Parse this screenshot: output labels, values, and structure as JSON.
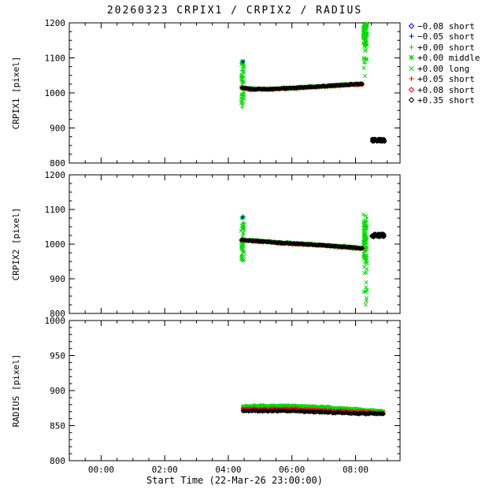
{
  "chart_data": {
    "type": "scatter",
    "title": "20260323 CRPIX1 / CRPIX2 / RADIUS",
    "xlabel": "Start Time (22-Mar-26 23:00:00)",
    "xlim": [
      0,
      10.4
    ],
    "x_unit": "hours after 22-Mar-26 23:00:00",
    "xticks": [
      {
        "t": 1,
        "label": "00:00"
      },
      {
        "t": 3,
        "label": "02:00"
      },
      {
        "t": 5,
        "label": "04:00"
      },
      {
        "t": 7,
        "label": "06:00"
      },
      {
        "t": 9,
        "label": "08:00"
      }
    ],
    "colors": {
      "green": "#00dd00",
      "red": "#ff0000",
      "blue": "#0000ff",
      "black": "#000000"
    },
    "legend": [
      {
        "symbol": "diamond",
        "color": "#0000ff",
        "label": "−0.08 short"
      },
      {
        "symbol": "plus",
        "color": "#0000ff",
        "label": "−0.05 short"
      },
      {
        "symbol": "plus",
        "color": "#00dd00",
        "label": "+0.00 short"
      },
      {
        "symbol": "asterisk",
        "color": "#00dd00",
        "label": "+0.00 middle"
      },
      {
        "symbol": "cross",
        "color": "#00dd00",
        "label": "+0.00 long"
      },
      {
        "symbol": "plus",
        "color": "#ff0000",
        "label": "+0.05 short"
      },
      {
        "symbol": "diamond",
        "color": "#ff0000",
        "label": "+0.08 short"
      },
      {
        "symbol": "diamond",
        "color": "#000000",
        "label": "+0.35 short"
      }
    ],
    "panels": [
      {
        "name": "CRPIX1",
        "ylabel": "CRPIX1 [pixel]",
        "ylim": [
          800,
          1200
        ],
        "yticks": [
          800,
          900,
          1000,
          1100,
          1200
        ],
        "yminor": 25,
        "series": [
          {
            "marker": "plus",
            "color": "#00dd00",
            "kind": "trend",
            "points": [
              [
                5.42,
                1015
              ],
              [
                5.7,
                1011
              ],
              [
                6.3,
                1011
              ],
              [
                7.2,
                1015
              ],
              [
                8.3,
                1021
              ],
              [
                9.22,
                1026
              ]
            ],
            "jitter": 4,
            "count": 110
          },
          {
            "marker": "asterisk",
            "color": "#00dd00",
            "kind": "trend",
            "points": [
              [
                5.42,
                1015
              ],
              [
                5.7,
                1011
              ],
              [
                6.3,
                1011
              ],
              [
                7.2,
                1015
              ],
              [
                8.3,
                1021
              ],
              [
                9.22,
                1026
              ]
            ],
            "jitter": 4.5,
            "count": 100
          },
          {
            "marker": "cross",
            "color": "#00dd00",
            "kind": "trend",
            "points": [
              [
                5.42,
                1015
              ],
              [
                5.7,
                1011
              ],
              [
                6.3,
                1011
              ],
              [
                7.2,
                1015
              ],
              [
                8.3,
                1021
              ],
              [
                9.22,
                1026
              ]
            ],
            "jitter": 3,
            "count": 170
          },
          {
            "marker": "plus",
            "color": "#00dd00",
            "kind": "cluster",
            "t": [
              5.4,
              5.5
            ],
            "y": [
              958,
              1092
            ],
            "count": 26
          },
          {
            "marker": "cross",
            "color": "#00dd00",
            "kind": "cluster",
            "t": [
              5.4,
              5.5
            ],
            "y": [
              958,
              1092
            ],
            "count": 30
          },
          {
            "marker": "plus",
            "color": "#00dd00",
            "kind": "cluster",
            "t": [
              9.24,
              9.36
            ],
            "y": [
              995,
              1200
            ],
            "count": 35,
            "bias": "top"
          },
          {
            "marker": "cross",
            "color": "#00dd00",
            "kind": "cluster",
            "t": [
              9.24,
              9.36
            ],
            "y": [
              995,
              1200
            ],
            "count": 55,
            "bias": "top"
          },
          {
            "marker": "plus",
            "color": "#ff0000",
            "kind": "trend",
            "points": [
              [
                5.42,
                1014
              ],
              [
                5.7,
                1010
              ],
              [
                6.3,
                1010
              ],
              [
                7.2,
                1014
              ],
              [
                8.3,
                1020
              ],
              [
                9.22,
                1025
              ]
            ],
            "jitter": 2.5,
            "count": 120
          },
          {
            "marker": "diamond",
            "color": "#ff0000",
            "kind": "trend",
            "points": [
              [
                5.42,
                1014
              ],
              [
                5.7,
                1010
              ],
              [
                6.3,
                1010
              ],
              [
                7.2,
                1014
              ],
              [
                8.3,
                1020
              ],
              [
                9.22,
                1025
              ]
            ],
            "jitter": 2.5,
            "count": 70
          },
          {
            "marker": "diamond",
            "color": "#000000",
            "kind": "trend",
            "points": [
              [
                5.42,
                1015
              ],
              [
                5.7,
                1011
              ],
              [
                6.3,
                1011
              ],
              [
                7.2,
                1015
              ],
              [
                8.3,
                1021
              ],
              [
                9.22,
                1026
              ]
            ],
            "jitter": 2,
            "count": 150
          },
          {
            "marker": "diamond",
            "color": "#000000",
            "kind": "cluster",
            "t": [
              9.52,
              9.92
            ],
            "y": [
              861,
              869
            ],
            "count": 60
          },
          {
            "marker": "plus",
            "color": "#0000ff",
            "kind": "cluster",
            "t": [
              5.43,
              5.47
            ],
            "y": [
              1078,
              1090
            ],
            "count": 2
          }
        ]
      },
      {
        "name": "CRPIX2",
        "ylabel": "CRPIX2 [pixel]",
        "ylim": [
          800,
          1200
        ],
        "yticks": [
          800,
          900,
          1000,
          1100,
          1200
        ],
        "yminor": 25,
        "series": [
          {
            "marker": "plus",
            "color": "#00dd00",
            "kind": "trend",
            "points": [
              [
                5.42,
                1012
              ],
              [
                6.0,
                1008
              ],
              [
                6.8,
                1003
              ],
              [
                7.6,
                999
              ],
              [
                8.4,
                994
              ],
              [
                9.22,
                988
              ]
            ],
            "jitter": 4,
            "count": 110
          },
          {
            "marker": "asterisk",
            "color": "#00dd00",
            "kind": "trend",
            "points": [
              [
                5.42,
                1012
              ],
              [
                6.0,
                1008
              ],
              [
                6.8,
                1003
              ],
              [
                7.6,
                999
              ],
              [
                8.4,
                994
              ],
              [
                9.22,
                988
              ]
            ],
            "jitter": 4.5,
            "count": 100
          },
          {
            "marker": "cross",
            "color": "#00dd00",
            "kind": "trend",
            "points": [
              [
                5.42,
                1012
              ],
              [
                6.0,
                1008
              ],
              [
                6.8,
                1003
              ],
              [
                7.6,
                999
              ],
              [
                8.4,
                994
              ],
              [
                9.22,
                988
              ]
            ],
            "jitter": 3,
            "count": 170
          },
          {
            "marker": "plus",
            "color": "#00dd00",
            "kind": "cluster",
            "t": [
              5.4,
              5.5
            ],
            "y": [
              952,
              1082
            ],
            "count": 22
          },
          {
            "marker": "cross",
            "color": "#00dd00",
            "kind": "cluster",
            "t": [
              5.4,
              5.5
            ],
            "y": [
              952,
              1082
            ],
            "count": 30
          },
          {
            "marker": "plus",
            "color": "#00dd00",
            "kind": "cluster",
            "t": [
              9.24,
              9.36
            ],
            "y": [
              945,
              1085
            ],
            "count": 25
          },
          {
            "marker": "cross",
            "color": "#00dd00",
            "kind": "cluster",
            "t": [
              9.24,
              9.36
            ],
            "y": [
              945,
              1085
            ],
            "count": 55
          },
          {
            "marker": "cross",
            "color": "#00dd00",
            "kind": "cluster",
            "t": [
              9.24,
              9.36
            ],
            "y": [
              808,
              945
            ],
            "count": 14
          },
          {
            "marker": "plus",
            "color": "#ff0000",
            "kind": "trend",
            "points": [
              [
                5.42,
                1011
              ],
              [
                6.0,
                1007
              ],
              [
                6.8,
                1002
              ],
              [
                7.6,
                998
              ],
              [
                8.4,
                993
              ],
              [
                9.22,
                987
              ]
            ],
            "jitter": 2.5,
            "count": 120
          },
          {
            "marker": "diamond",
            "color": "#ff0000",
            "kind": "trend",
            "points": [
              [
                5.42,
                1011
              ],
              [
                6.0,
                1007
              ],
              [
                6.8,
                1002
              ],
              [
                7.6,
                998
              ],
              [
                8.4,
                993
              ],
              [
                9.22,
                987
              ]
            ],
            "jitter": 2.5,
            "count": 70
          },
          {
            "marker": "diamond",
            "color": "#000000",
            "kind": "trend",
            "points": [
              [
                5.42,
                1012
              ],
              [
                6.0,
                1008
              ],
              [
                6.8,
                1003
              ],
              [
                7.6,
                999
              ],
              [
                8.4,
                994
              ],
              [
                9.22,
                988
              ]
            ],
            "jitter": 2,
            "count": 150
          },
          {
            "marker": "diamond",
            "color": "#000000",
            "kind": "cluster",
            "t": [
              9.5,
              9.92
            ],
            "y": [
              1020,
              1030
            ],
            "count": 60
          },
          {
            "marker": "plus",
            "color": "#0000ff",
            "kind": "cluster",
            "t": [
              5.43,
              5.47
            ],
            "y": [
              1070,
              1080
            ],
            "count": 2
          }
        ]
      },
      {
        "name": "RADIUS",
        "ylabel": "RADIUS [pixel]",
        "ylim": [
          800,
          1000
        ],
        "yticks": [
          800,
          850,
          900,
          950,
          1000
        ],
        "yminor": 10,
        "series": [
          {
            "marker": "plus",
            "color": "#00dd00",
            "kind": "trend",
            "points": [
              [
                5.45,
                877
              ],
              [
                6.2,
                878
              ],
              [
                7.0,
                878
              ],
              [
                8.0,
                876
              ],
              [
                9.0,
                873
              ],
              [
                9.88,
                870
              ]
            ],
            "jitter": 1.8,
            "count": 100
          },
          {
            "marker": "asterisk",
            "color": "#00dd00",
            "kind": "trend",
            "points": [
              [
                5.45,
                877
              ],
              [
                6.2,
                878
              ],
              [
                7.0,
                878
              ],
              [
                8.0,
                876
              ],
              [
                9.0,
                873
              ],
              [
                9.88,
                870
              ]
            ],
            "jitter": 2,
            "count": 90
          },
          {
            "marker": "cross",
            "color": "#00dd00",
            "kind": "trend",
            "points": [
              [
                5.45,
                877
              ],
              [
                6.2,
                878
              ],
              [
                7.0,
                878
              ],
              [
                8.0,
                876
              ],
              [
                9.0,
                873
              ],
              [
                9.88,
                870
              ]
            ],
            "jitter": 1.4,
            "count": 160
          },
          {
            "marker": "plus",
            "color": "#ff0000",
            "kind": "trend",
            "points": [
              [
                5.45,
                874
              ],
              [
                7.0,
                874
              ],
              [
                8.0,
                872
              ],
              [
                9.0,
                870
              ],
              [
                9.88,
                868
              ]
            ],
            "jitter": 1.4,
            "count": 110
          },
          {
            "marker": "diamond",
            "color": "#ff0000",
            "kind": "trend",
            "points": [
              [
                5.45,
                874
              ],
              [
                7.0,
                874
              ],
              [
                8.0,
                872
              ],
              [
                9.0,
                870
              ],
              [
                9.88,
                868
              ]
            ],
            "jitter": 1.4,
            "count": 60
          },
          {
            "marker": "diamond",
            "color": "#000000",
            "kind": "trend",
            "points": [
              [
                5.45,
                871
              ],
              [
                7.0,
                871
              ],
              [
                8.0,
                869
              ],
              [
                9.3,
                867
              ],
              [
                9.88,
                867
              ]
            ],
            "jitter": 1.2,
            "count": 170
          }
        ]
      }
    ]
  }
}
